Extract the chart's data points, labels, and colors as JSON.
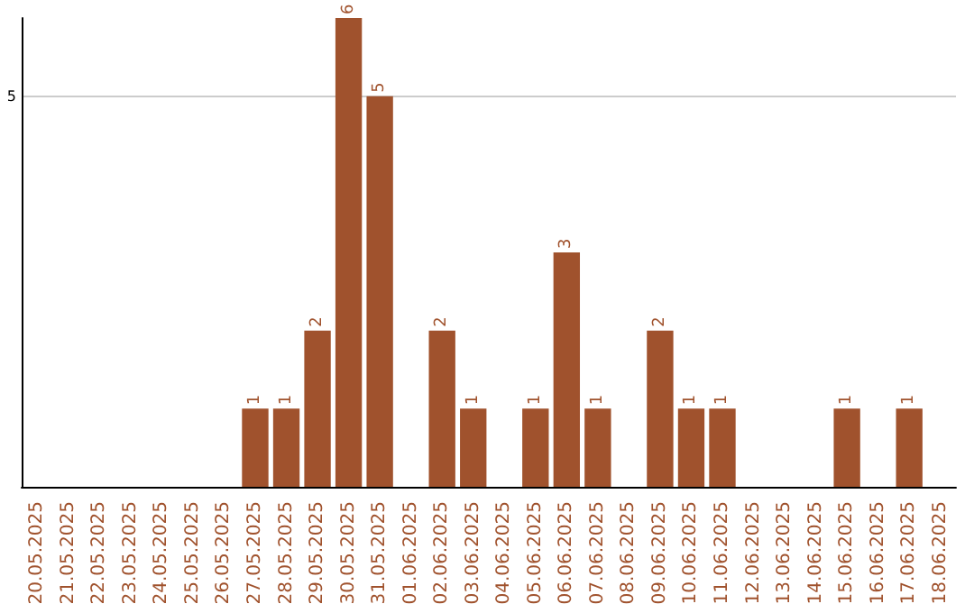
{
  "chart_data": {
    "type": "bar",
    "categories": [
      "20.05.2025",
      "21.05.2025",
      "22.05.2025",
      "23.05.2025",
      "24.05.2025",
      "25.05.2025",
      "26.05.2025",
      "27.05.2025",
      "28.05.2025",
      "29.05.2025",
      "30.05.2025",
      "31.05.2025",
      "01.06.2025",
      "02.06.2025",
      "03.06.2025",
      "04.06.2025",
      "05.06.2025",
      "06.06.2025",
      "07.06.2025",
      "08.06.2025",
      "09.06.2025",
      "10.06.2025",
      "11.06.2025",
      "12.06.2025",
      "13.06.2025",
      "14.06.2025",
      "15.06.2025",
      "16.06.2025",
      "17.06.2025",
      "18.06.2025"
    ],
    "values": [
      0,
      0,
      0,
      0,
      0,
      0,
      0,
      1,
      1,
      2,
      6,
      5,
      0,
      2,
      1,
      0,
      1,
      3,
      1,
      0,
      2,
      1,
      1,
      0,
      0,
      0,
      1,
      0,
      1,
      0
    ],
    "value_labels": [
      null,
      null,
      null,
      null,
      null,
      null,
      null,
      "1",
      "1",
      "2",
      "6",
      "5",
      null,
      "2",
      "1",
      null,
      "1",
      "3",
      "1",
      null,
      "2",
      "1",
      "1",
      null,
      null,
      null,
      "1",
      null,
      "1",
      null
    ],
    "color": "#a0522d",
    "ylim": [
      0,
      6
    ],
    "yticks": [
      5
    ],
    "grid": "y"
  }
}
